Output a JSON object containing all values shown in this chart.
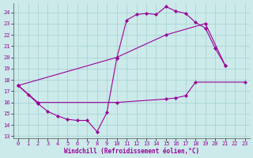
{
  "xlabel": "Windchill (Refroidissement éolien,°C)",
  "xlim": [
    -0.5,
    23.5
  ],
  "ylim": [
    12.8,
    24.8
  ],
  "xticks": [
    0,
    1,
    2,
    3,
    4,
    5,
    6,
    7,
    8,
    9,
    10,
    11,
    12,
    13,
    14,
    15,
    16,
    17,
    18,
    19,
    20,
    21,
    22,
    23
  ],
  "yticks": [
    13,
    14,
    15,
    16,
    17,
    18,
    19,
    20,
    21,
    22,
    23,
    24
  ],
  "bg_color": "#cceaea",
  "line_color": "#990099",
  "grid_color": "#aad4d4",
  "series": [
    {
      "x": [
        0,
        1,
        2,
        3,
        4,
        5,
        6,
        7,
        8,
        9,
        10,
        11,
        12,
        13,
        14,
        15,
        16,
        17,
        18,
        19,
        20,
        21
      ],
      "y": [
        17.5,
        16.7,
        15.9,
        15.2,
        14.8,
        14.5,
        14.4,
        14.4,
        13.4,
        15.1,
        19.9,
        23.3,
        23.8,
        23.9,
        23.8,
        24.5,
        24.1,
        23.9,
        23.1,
        22.6,
        20.8,
        19.3
      ]
    },
    {
      "x": [
        0,
        10,
        15,
        19,
        21
      ],
      "y": [
        17.5,
        20.0,
        22.0,
        23.0,
        19.3
      ]
    },
    {
      "x": [
        0,
        2,
        10,
        15,
        16,
        17,
        18,
        23
      ],
      "y": [
        17.5,
        16.0,
        16.0,
        16.3,
        16.4,
        16.6,
        17.8,
        17.8
      ]
    }
  ]
}
